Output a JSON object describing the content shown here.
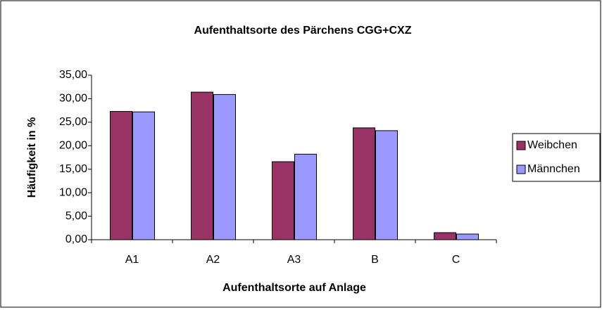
{
  "chart_data": {
    "type": "bar",
    "title": "Aufenthaltsorte des Pärchens CGG+CXZ",
    "x_label": "Aufenthaltsorte auf Anlage",
    "y_label": "Häufigkeit in %",
    "categories": [
      "A1",
      "A2",
      "A3",
      "B",
      "C"
    ],
    "series": [
      {
        "name": "Weibchen",
        "color": "#993366",
        "values": [
          27.3,
          31.4,
          16.6,
          23.8,
          1.5
        ]
      },
      {
        "name": "Männchen",
        "color": "#9999ff",
        "values": [
          27.2,
          30.9,
          18.2,
          23.2,
          1.2
        ]
      }
    ],
    "ylim": [
      0,
      35
    ],
    "yticks": [
      {
        "value": 0,
        "label": "0,00"
      },
      {
        "value": 5,
        "label": "5,00"
      },
      {
        "value": 10,
        "label": "10,00"
      },
      {
        "value": 15,
        "label": "15,00"
      },
      {
        "value": 20,
        "label": "20,00"
      },
      {
        "value": 25,
        "label": "25,00"
      },
      {
        "value": 30,
        "label": "30,00"
      },
      {
        "value": 35,
        "label": "35,00"
      }
    ],
    "grid": false,
    "legend": "right"
  }
}
